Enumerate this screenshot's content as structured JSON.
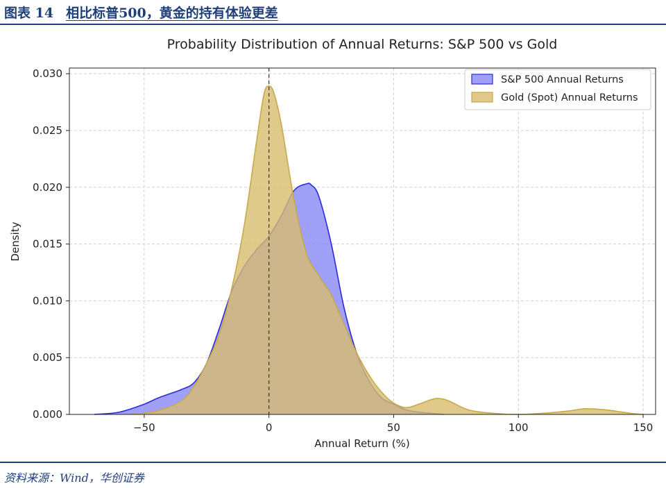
{
  "figure": {
    "number_label": "图表 14",
    "title": "相比标普500，黄金的持有体验更差",
    "source": "资料来源：Wind，华创证券"
  },
  "colors": {
    "header_blue": "#1f3f7a",
    "sp500_fill": "#8f8ff7",
    "sp500_line": "#2b2bd6",
    "gold_fill": "#d8bd6e",
    "gold_line": "#c7a948"
  },
  "chart_data": {
    "type": "area",
    "title": "Probability Distribution of Annual Returns: S&P 500 vs Gold",
    "xlabel": "Annual Return (%)",
    "ylabel": "Density",
    "xlim": [
      -80,
      155
    ],
    "ylim": [
      0,
      0.0305
    ],
    "xticks": [
      -50,
      0,
      50,
      100,
      150
    ],
    "yticks": [
      0.0,
      0.005,
      0.01,
      0.015,
      0.02,
      0.025,
      0.03
    ],
    "xtick_labels": [
      "−50",
      "0",
      "50",
      "100",
      "150"
    ],
    "ytick_labels": [
      "0.000",
      "0.005",
      "0.010",
      "0.015",
      "0.020",
      "0.025",
      "0.030"
    ],
    "grid": true,
    "legend_position": "top-right",
    "reference_line_x": 0,
    "series": [
      {
        "name": "S&P 500 Annual Returns",
        "x": [
          -70,
          -60,
          -50,
          -45,
          -40,
          -35,
          -30,
          -25,
          -20,
          -15,
          -10,
          -5,
          0,
          5,
          10,
          15,
          17,
          20,
          25,
          30,
          35,
          40,
          45,
          50,
          55,
          60,
          65,
          70
        ],
        "y": [
          0.0,
          0.0002,
          0.0009,
          0.0014,
          0.0018,
          0.0022,
          0.0028,
          0.0045,
          0.0075,
          0.0108,
          0.013,
          0.0145,
          0.0157,
          0.0175,
          0.0197,
          0.0203,
          0.0202,
          0.0192,
          0.015,
          0.0095,
          0.0055,
          0.003,
          0.0015,
          0.0009,
          0.0004,
          0.0002,
          0.0001,
          0.0
        ]
      },
      {
        "name": "Gold (Spot) Annual Returns",
        "x": [
          -55,
          -45,
          -35,
          -30,
          -25,
          -20,
          -15,
          -10,
          -5,
          -2,
          0,
          2,
          5,
          10,
          15,
          20,
          25,
          30,
          35,
          40,
          45,
          50,
          55,
          60,
          65,
          68,
          72,
          80,
          90,
          100,
          110,
          120,
          127,
          135,
          145,
          150
        ],
        "y": [
          0.0,
          0.0003,
          0.0012,
          0.0025,
          0.0045,
          0.007,
          0.011,
          0.0165,
          0.024,
          0.0282,
          0.0289,
          0.0283,
          0.0255,
          0.019,
          0.0142,
          0.0122,
          0.0105,
          0.008,
          0.0055,
          0.0035,
          0.002,
          0.001,
          0.0006,
          0.0009,
          0.0013,
          0.0014,
          0.0012,
          0.0004,
          0.0001,
          0.0,
          0.0001,
          0.0003,
          0.0005,
          0.0004,
          0.0001,
          0.0
        ]
      }
    ]
  }
}
